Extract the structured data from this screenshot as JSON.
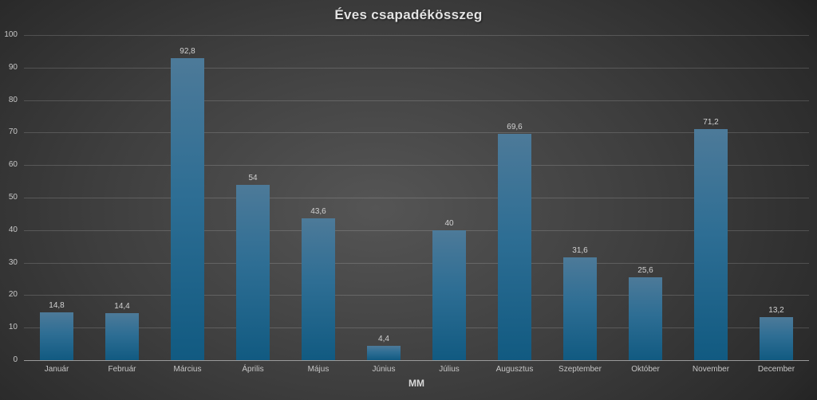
{
  "chart_data": {
    "type": "bar",
    "title": "Éves csapadékösszeg",
    "categories": [
      "Január",
      "Február",
      "Március",
      "Április",
      "Május",
      "Június",
      "Július",
      "Augusztus",
      "Szeptember",
      "Október",
      "November",
      "December"
    ],
    "values": [
      14.8,
      14.4,
      92.8,
      54,
      43.6,
      4.4,
      40,
      69.6,
      31.6,
      25.6,
      71.2,
      13.2
    ],
    "value_labels": [
      "14,8",
      "14,4",
      "92,8",
      "54",
      "43,6",
      "4,4",
      "40",
      "69,6",
      "31,6",
      "25,6",
      "71,2",
      "13,2"
    ],
    "xlabel": "MM",
    "ylabel": "",
    "ylim": [
      0,
      100
    ],
    "yticks": [
      0,
      10,
      20,
      30,
      40,
      50,
      60,
      70,
      80,
      90,
      100
    ],
    "grid": true,
    "legend": false,
    "colors": {
      "bar_gradient_top": "#4d7a99",
      "bar_gradient_mid": "#2e6e94",
      "bar_gradient_bottom": "#115a81",
      "background_center": "#555555",
      "background_edge": "#202020",
      "gridline": "rgba(255,255,255,0.16)",
      "axis_line": "#9a9a9a",
      "label_text": "#c8c8c8",
      "value_label_text": "#d2d2d2",
      "title_text": "#e3e3e3"
    }
  }
}
